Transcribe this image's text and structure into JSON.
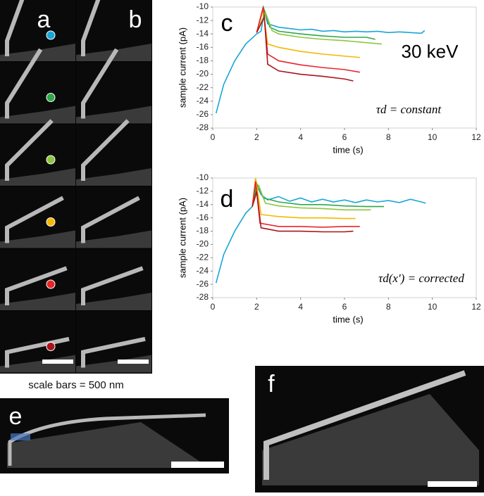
{
  "panels": [
    "a",
    "b",
    "c",
    "d",
    "e",
    "f"
  ],
  "note": "scale bars = 500 nm",
  "chart_data": [
    {
      "type": "line",
      "x_label": "time (s)",
      "y_label": "sample current (pA)",
      "xlim": [
        0,
        12
      ],
      "ylim": [
        -28,
        -10
      ],
      "xticks": [
        0,
        2,
        4,
        6,
        8,
        10,
        12
      ],
      "yticks": [
        -28,
        -26,
        -24,
        -22,
        -20,
        -18,
        -16,
        -14,
        -12,
        -10
      ],
      "annotations": [
        "30 keV",
        "τd = constant"
      ],
      "series": [
        {
          "color": "#1aa6d6",
          "x": [
            0.15,
            0.5,
            1,
            1.5,
            2.0,
            2.2,
            2.35,
            2.5,
            3,
            3.5,
            4,
            4.5,
            5,
            5.5,
            6,
            6.5,
            7,
            7.5,
            8,
            8.5,
            9,
            9.5,
            9.65
          ],
          "values": [
            -25.8,
            -21.5,
            -18,
            -15.5,
            -14,
            -13.6,
            -10.5,
            -12.5,
            -13,
            -13.2,
            -13.4,
            -13.3,
            -13.6,
            -13.5,
            -13.7,
            -13.6,
            -13.7,
            -13.6,
            -13.8,
            -13.7,
            -13.8,
            -13.9,
            -13.5
          ]
        },
        {
          "color": "#2ea84a",
          "x": [
            2.0,
            2.3,
            2.6,
            3,
            4,
            5,
            6,
            7,
            7.4
          ],
          "values": [
            -13.8,
            -10,
            -13,
            -13.6,
            -14,
            -14.3,
            -14.5,
            -14.5,
            -14.8
          ]
        },
        {
          "color": "#8cc63f",
          "x": [
            2.0,
            2.4,
            2.7,
            3,
            4,
            5,
            6,
            7,
            7.7
          ],
          "values": [
            -13.8,
            -10.8,
            -13.5,
            -14,
            -14.5,
            -14.8,
            -15,
            -15.3,
            -15.5
          ]
        },
        {
          "color": "#f5b800",
          "x": [
            2.0,
            2.3,
            2.5,
            3,
            4,
            5,
            6,
            6.7
          ],
          "values": [
            -13.8,
            -10.5,
            -15.5,
            -16,
            -16.6,
            -17,
            -17.3,
            -17.5
          ]
        },
        {
          "color": "#e8262a",
          "x": [
            2.0,
            2.3,
            2.5,
            3,
            4,
            5,
            6,
            6.7
          ],
          "values": [
            -13.8,
            -10,
            -17,
            -18,
            -18.6,
            -19,
            -19.3,
            -19.7
          ]
        },
        {
          "color": "#a8141c",
          "x": [
            2.0,
            2.35,
            2.5,
            3,
            4,
            5,
            6,
            6.4
          ],
          "values": [
            -13.8,
            -11.5,
            -18.5,
            -19.5,
            -20,
            -20.3,
            -20.7,
            -21
          ]
        }
      ]
    },
    {
      "type": "line",
      "x_label": "time (s)",
      "y_label": "sample current (pA)",
      "xlim": [
        0,
        12
      ],
      "ylim": [
        -28,
        -10
      ],
      "xticks": [
        0,
        2,
        4,
        6,
        8,
        10,
        12
      ],
      "yticks": [
        -28,
        -26,
        -24,
        -22,
        -20,
        -18,
        -16,
        -14,
        -12,
        -10
      ],
      "annotations": [
        "τd(x′) = corrected"
      ],
      "series": [
        {
          "color": "#1aa6d6",
          "x": [
            0.15,
            0.5,
            1,
            1.5,
            1.8,
            2.0,
            2.2,
            2.5,
            3,
            3.5,
            4,
            4.5,
            5,
            5.5,
            6,
            6.5,
            7,
            7.5,
            8,
            8.5,
            9,
            9.5,
            9.7
          ],
          "values": [
            -25.8,
            -21.5,
            -18,
            -15.3,
            -14.3,
            -11,
            -12.5,
            -13.3,
            -12.8,
            -13.5,
            -13,
            -13.6,
            -13.2,
            -13.6,
            -13.3,
            -13.7,
            -13.3,
            -13.6,
            -13.4,
            -13.7,
            -13.2,
            -13.6,
            -13.8
          ]
        },
        {
          "color": "#2ea84a",
          "x": [
            1.8,
            2.0,
            2.3,
            3,
            4,
            5,
            6,
            7,
            7.8
          ],
          "values": [
            -14.3,
            -10.8,
            -13,
            -13.6,
            -14,
            -14,
            -14.2,
            -14.3,
            -14.3
          ]
        },
        {
          "color": "#8cc63f",
          "x": [
            1.8,
            2.1,
            2.4,
            3,
            4,
            5,
            6,
            7.2
          ],
          "values": [
            -14.3,
            -11.2,
            -13.8,
            -14.2,
            -14.5,
            -14.6,
            -14.8,
            -14.8
          ]
        },
        {
          "color": "#f5b800",
          "x": [
            1.8,
            1.95,
            2.2,
            3,
            4,
            5,
            6,
            6.5
          ],
          "values": [
            -14.3,
            -10,
            -15.5,
            -15.8,
            -16,
            -16,
            -16.1,
            -16.1
          ]
        },
        {
          "color": "#e8262a",
          "x": [
            1.8,
            1.95,
            2.15,
            3,
            4,
            5,
            6,
            6.7
          ],
          "values": [
            -14.3,
            -10.5,
            -16.8,
            -17.3,
            -17.3,
            -17.4,
            -17.3,
            -17.3
          ]
        },
        {
          "color": "#a8141c",
          "x": [
            1.8,
            2.0,
            2.2,
            3,
            4,
            5,
            6,
            6.4
          ],
          "values": [
            -14.3,
            -12,
            -17.5,
            -18,
            -18,
            -18.1,
            -18.1,
            -18
          ]
        }
      ]
    }
  ]
}
